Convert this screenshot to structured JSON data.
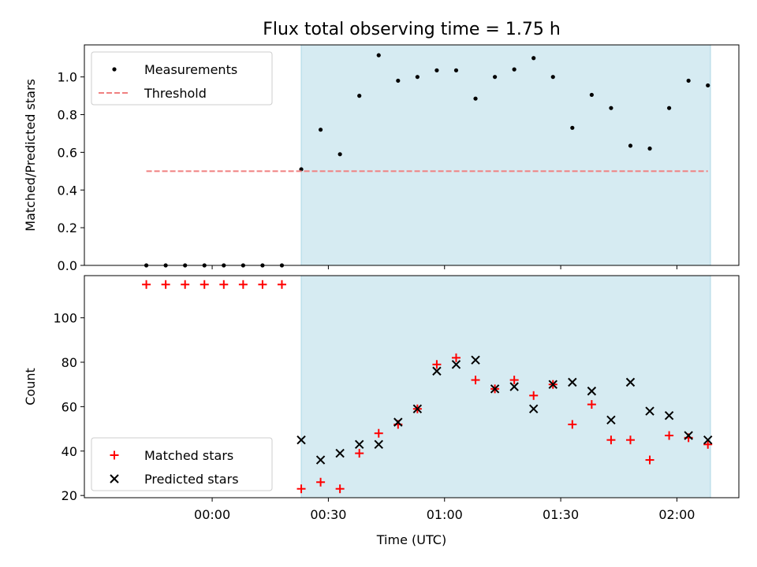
{
  "title": "Flux total observing time = 1.75 h",
  "chart_data": [
    {
      "type": "scatter",
      "ylabel": "Matched/Predicted stars",
      "xlim": [
        "23:27:00",
        "02:16:00"
      ],
      "ylim": [
        0,
        1.17
      ],
      "yticks": [
        "0.0",
        "0.2",
        "0.4",
        "0.6",
        "0.8",
        "1.0"
      ],
      "yticks_values": [
        0,
        0.2,
        0.4,
        0.6,
        0.8,
        1.0
      ],
      "shaded_span": [
        "00:23:00",
        "02:08:40"
      ],
      "grid": false,
      "legend_location": "upper-left",
      "series": [
        {
          "name": "Measurements",
          "marker": "dot",
          "color": "#000000",
          "x": [
            "23:43",
            "23:48",
            "23:53",
            "23:58",
            "00:03",
            "00:08",
            "00:13",
            "00:18",
            "00:23",
            "00:28",
            "00:33",
            "00:38",
            "00:43",
            "00:48",
            "00:53",
            "00:58",
            "01:03",
            "01:08",
            "01:13",
            "01:18",
            "01:23",
            "01:28",
            "01:33",
            "01:38",
            "01:43",
            "01:48",
            "01:53",
            "01:58",
            "02:03",
            "02:08"
          ],
          "y": [
            0,
            0,
            0,
            0,
            0,
            0,
            0,
            0,
            0.51,
            0.72,
            0.59,
            0.9,
            1.115,
            0.98,
            1.0,
            1.035,
            1.035,
            0.885,
            1.0,
            1.04,
            1.1,
            1.0,
            0.73,
            0.905,
            0.835,
            0.635,
            0.62,
            0.835,
            0.98,
            0.955
          ]
        },
        {
          "name": "Threshold",
          "style": "dashed-line",
          "color": "#f08080",
          "x": [
            "23:43",
            "02:08"
          ],
          "y": [
            0.5,
            0.5
          ]
        }
      ]
    },
    {
      "type": "scatter",
      "xlabel": "Time (UTC)",
      "ylabel": "Count",
      "xlim": [
        "23:27:00",
        "02:16:00"
      ],
      "ylim": [
        19,
        119
      ],
      "yticks": [
        "20",
        "40",
        "60",
        "80",
        "100"
      ],
      "yticks_values": [
        20,
        40,
        60,
        80,
        100
      ],
      "xticks": [
        "00:00",
        "00:30",
        "01:00",
        "01:30",
        "02:00"
      ],
      "shaded_span": [
        "00:23:00",
        "02:08:40"
      ],
      "grid": false,
      "legend_location": "lower-left",
      "series": [
        {
          "name": "Matched stars",
          "marker": "plus",
          "color": "#ff0000",
          "x": [
            "23:43",
            "23:48",
            "23:53",
            "23:58",
            "00:03",
            "00:08",
            "00:13",
            "00:18",
            "00:23",
            "00:28",
            "00:33",
            "00:38",
            "00:43",
            "00:48",
            "00:53",
            "00:58",
            "01:03",
            "01:08",
            "01:13",
            "01:18",
            "01:23",
            "01:28",
            "01:33",
            "01:38",
            "01:43",
            "01:48",
            "01:53",
            "01:58",
            "02:03",
            "02:08"
          ],
          "y": [
            115,
            115,
            115,
            115,
            115,
            115,
            115,
            115,
            23,
            26,
            23,
            39,
            48,
            52,
            59,
            79,
            82,
            72,
            68,
            72,
            65,
            70,
            52,
            61,
            45,
            45,
            36,
            47,
            46,
            43
          ]
        },
        {
          "name": "Predicted stars",
          "marker": "x",
          "color": "#000000",
          "x": [
            "00:23",
            "00:28",
            "00:33",
            "00:38",
            "00:43",
            "00:48",
            "00:53",
            "00:58",
            "01:03",
            "01:08",
            "01:13",
            "01:18",
            "01:23",
            "01:28",
            "01:33",
            "01:38",
            "01:43",
            "01:48",
            "01:53",
            "01:58",
            "02:03",
            "02:08"
          ],
          "y": [
            45,
            36,
            39,
            43,
            43,
            53,
            59,
            76,
            79,
            81,
            68,
            69,
            59,
            70,
            71,
            67,
            54,
            71,
            58,
            56,
            47,
            45
          ]
        }
      ]
    }
  ]
}
